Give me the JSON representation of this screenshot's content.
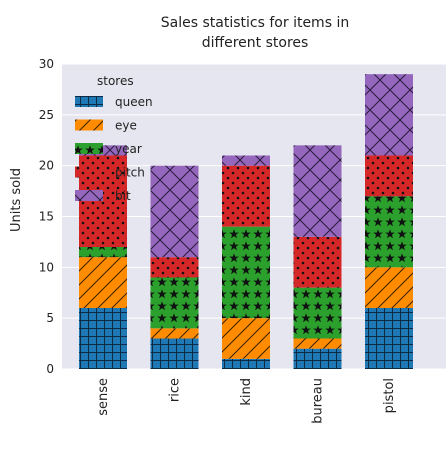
{
  "chart_data": {
    "type": "bar",
    "stacked": true,
    "title": "Sales statistics for items in different stores",
    "xlabel": "",
    "ylabel": "Units sold",
    "ylim": [
      0,
      30
    ],
    "yticks": [
      0,
      5,
      10,
      15,
      20,
      25,
      30
    ],
    "grid": true,
    "legend_title": "stores",
    "legend_position": "top-left",
    "categories": [
      "sense",
      "rice",
      "kind",
      "bureau",
      "pistol"
    ],
    "series": [
      {
        "name": "queen",
        "color": "#1f77b4",
        "pattern": "grid",
        "values": [
          6,
          3,
          1,
          2,
          6
        ]
      },
      {
        "name": "eye",
        "color": "#ff8c00",
        "pattern": "diagonal",
        "values": [
          5,
          1,
          4,
          1,
          4
        ]
      },
      {
        "name": "year",
        "color": "#2ca02c",
        "pattern": "stars",
        "values": [
          1,
          5,
          9,
          5,
          7
        ]
      },
      {
        "name": "pitch",
        "color": "#d62728",
        "pattern": "dots",
        "values": [
          9,
          2,
          6,
          5,
          4
        ]
      },
      {
        "name": "bit",
        "color": "#9467bd",
        "pattern": "crosshatch",
        "values": [
          1,
          9,
          1,
          9,
          8
        ]
      }
    ]
  }
}
